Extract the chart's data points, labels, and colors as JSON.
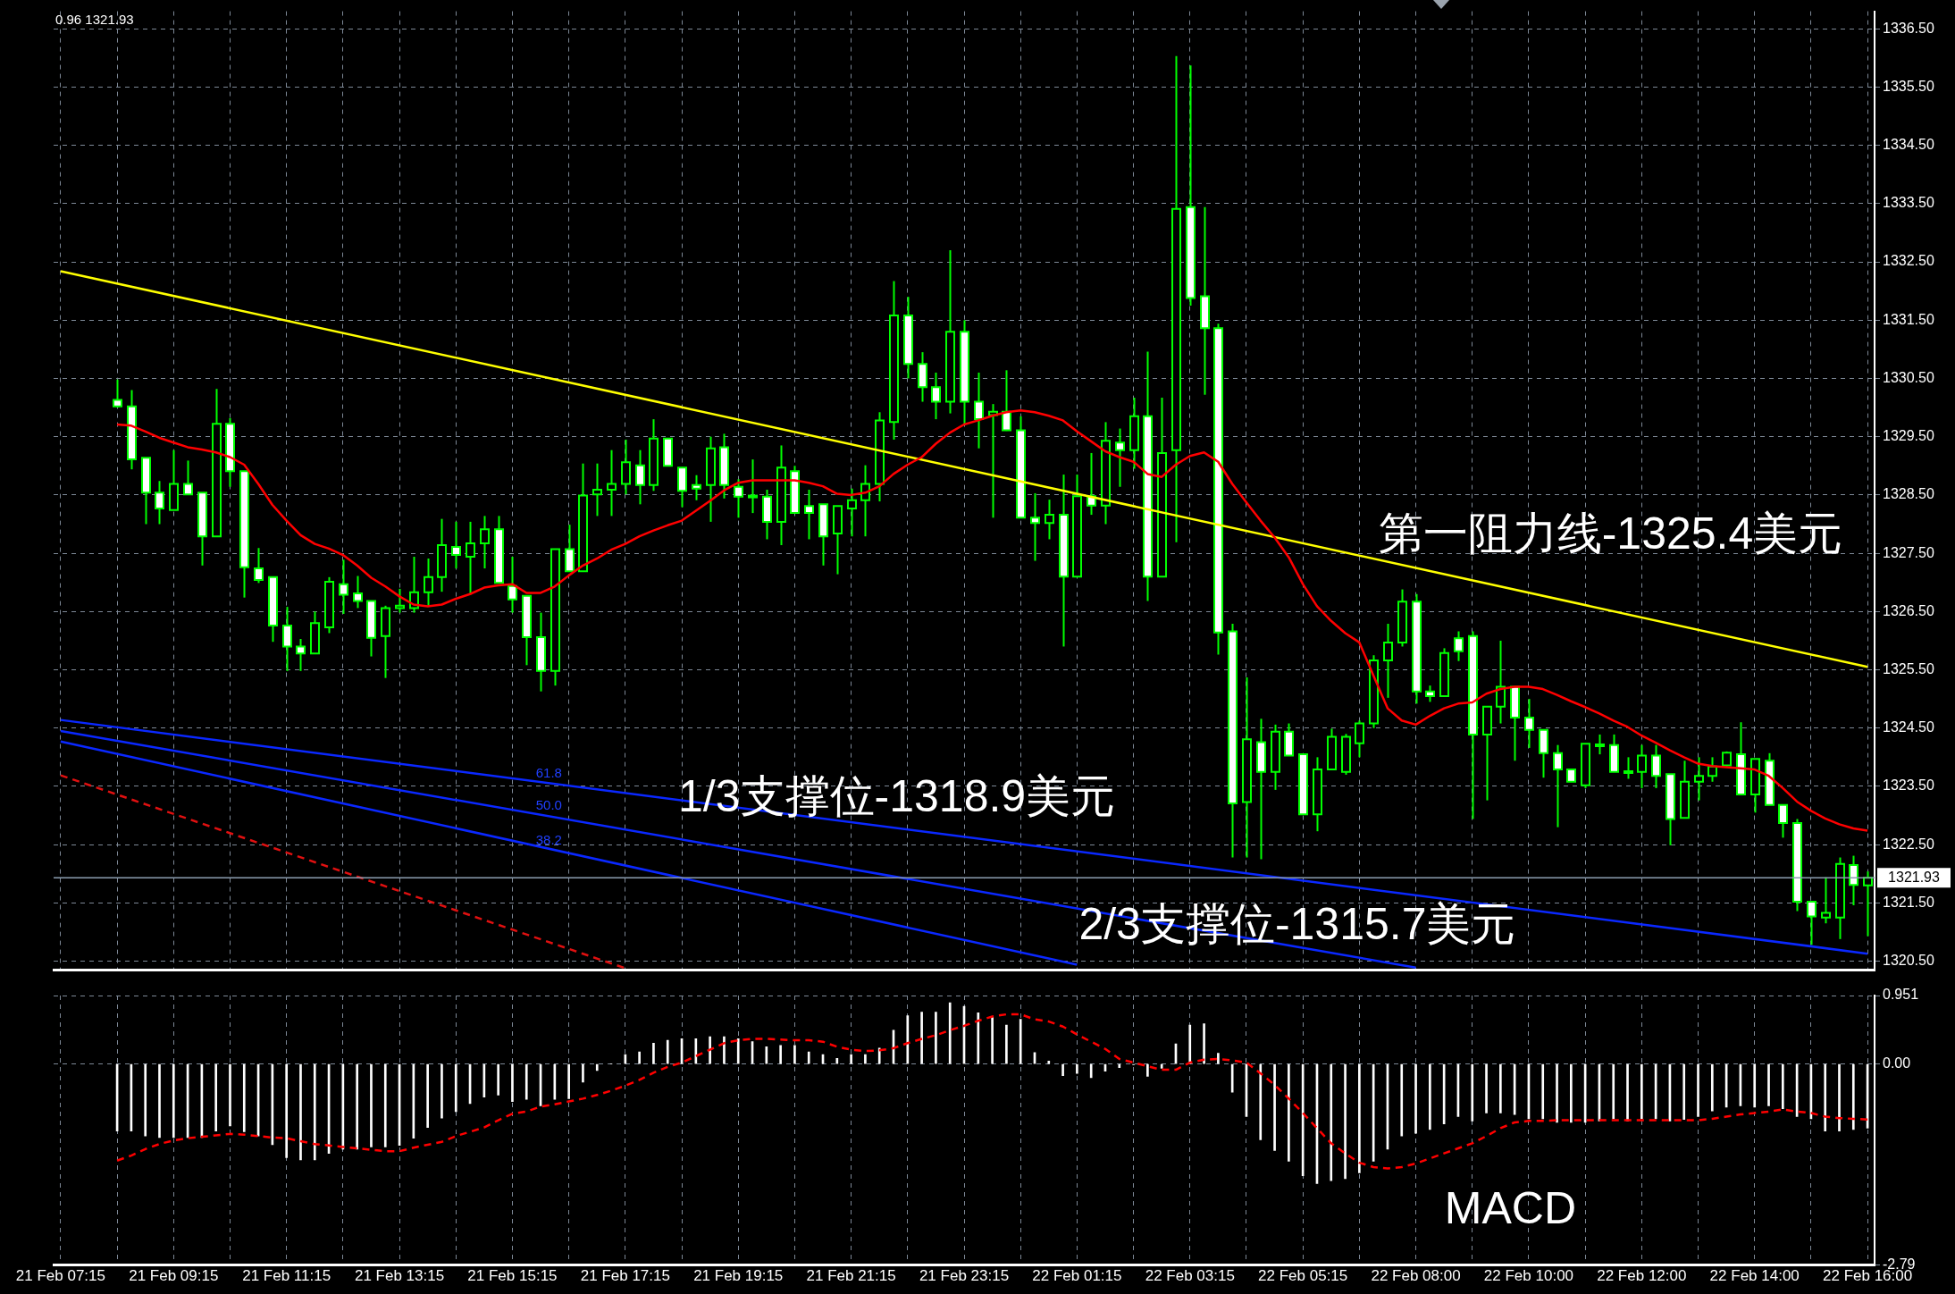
{
  "chart_data": [
    {
      "type": "candlestick",
      "color": "#00ff00",
      "tick_labels": "y",
      "grid": true,
      "categories": [
        "21 Feb 07:15",
        null,
        null,
        null,
        null,
        null,
        null,
        null,
        "21 Feb 09:15",
        null,
        null,
        null,
        null,
        null,
        null,
        null,
        "21 Feb 11:15",
        null,
        null,
        null,
        null,
        null,
        null,
        null,
        "21 Feb 13:15",
        null,
        null,
        null,
        null,
        null,
        null,
        null,
        "21 Feb 15:15",
        null,
        null,
        null,
        null,
        null,
        null,
        null,
        "21 Feb 17:15",
        null,
        null,
        null,
        null,
        null,
        null,
        null,
        "21 Feb 19:15",
        null,
        null,
        null,
        null,
        null,
        null,
        null,
        "21 Feb 21:15",
        null,
        null,
        null,
        null,
        null,
        null,
        null,
        "21 Feb 23:15",
        null,
        null,
        null,
        null,
        null,
        null,
        null,
        "22 Feb 01:15",
        null,
        null,
        null,
        null,
        null,
        null,
        null,
        "22 Feb 03:15",
        null,
        null,
        null,
        null,
        null,
        null,
        null,
        "22 Feb 05:15",
        null,
        null,
        null,
        null,
        null,
        null,
        null,
        "22 Feb 08:00",
        null,
        null,
        null,
        null,
        null,
        null,
        null,
        "22 Feb 10:00",
        null,
        null,
        null,
        null,
        null,
        null,
        null,
        "22 Feb 12:00",
        null,
        null,
        null,
        null,
        null,
        null,
        null,
        "22 Feb 14:00",
        null,
        null,
        null,
        null,
        null,
        null,
        null,
        "22 Feb 16:00"
      ],
      "ohlc": [
        null,
        null,
        null,
        null,
        [
          1330.13,
          1330.48,
          1330.0,
          1330.02
        ],
        [
          1330.02,
          1330.3,
          1328.94,
          1329.11
        ],
        [
          1329.14,
          1329.14,
          1328.0,
          1328.54
        ],
        [
          1328.54,
          1328.74,
          1328.0,
          1328.27
        ],
        [
          1328.24,
          1329.27,
          1328.24,
          1328.69
        ],
        [
          1328.69,
          1329.09,
          1328.51,
          1328.51
        ],
        [
          1328.54,
          1328.54,
          1327.29,
          1327.79
        ],
        [
          1327.79,
          1330.32,
          1327.79,
          1329.72
        ],
        [
          1329.72,
          1329.82,
          1328.64,
          1328.91
        ],
        [
          1328.91,
          1328.91,
          1326.74,
          1327.26
        ],
        [
          1327.24,
          1327.59,
          1326.99,
          1327.04
        ],
        [
          1327.09,
          1327.09,
          1325.98,
          1326.26
        ],
        [
          1326.26,
          1326.58,
          1325.48,
          1325.9
        ],
        [
          1325.9,
          1326.03,
          1325.48,
          1325.78
        ],
        [
          1325.78,
          1326.5,
          1325.78,
          1326.3
        ],
        [
          1326.23,
          1327.09,
          1326.13,
          1327.01
        ],
        [
          1326.97,
          1327.39,
          1326.46,
          1326.79
        ],
        [
          1326.81,
          1327.11,
          1326.56,
          1326.68
        ],
        [
          1326.68,
          1326.68,
          1325.73,
          1326.05
        ],
        [
          1326.08,
          1326.6,
          1325.36,
          1326.56
        ],
        [
          1326.56,
          1326.89,
          1326.48,
          1326.6
        ],
        [
          1326.56,
          1327.44,
          1326.48,
          1326.83
        ],
        [
          1326.83,
          1327.41,
          1326.58,
          1327.09
        ],
        [
          1327.09,
          1328.09,
          1326.84,
          1327.64
        ],
        [
          1327.61,
          1328.04,
          1327.24,
          1327.47
        ],
        [
          1327.44,
          1328.04,
          1326.79,
          1327.67
        ],
        [
          1327.67,
          1328.14,
          1327.24,
          1327.91
        ],
        [
          1327.91,
          1328.14,
          1326.99,
          1326.99
        ],
        [
          1326.94,
          1327.44,
          1326.48,
          1326.71
        ],
        [
          1326.77,
          1326.77,
          1325.58,
          1326.06
        ],
        [
          1326.06,
          1326.48,
          1325.13,
          1325.48
        ],
        [
          1325.48,
          1327.57,
          1325.23,
          1327.57
        ],
        [
          1327.57,
          1327.99,
          1327.19,
          1327.19
        ],
        [
          1327.19,
          1329.04,
          1327.19,
          1328.49
        ],
        [
          1328.51,
          1329.04,
          1328.14,
          1328.59
        ],
        [
          1328.59,
          1329.27,
          1328.14,
          1328.69
        ],
        [
          1328.69,
          1329.45,
          1328.51,
          1329.06
        ],
        [
          1329.01,
          1329.27,
          1328.34,
          1328.67
        ],
        [
          1328.67,
          1329.8,
          1328.57,
          1329.47
        ],
        [
          1329.47,
          1329.47,
          1329.0,
          1329.0
        ],
        [
          1328.97,
          1328.97,
          1328.29,
          1328.57
        ],
        [
          1328.67,
          1328.84,
          1328.41,
          1328.61
        ],
        [
          1328.67,
          1329.5,
          1328.04,
          1329.3
        ],
        [
          1329.32,
          1329.55,
          1328.44,
          1328.67
        ],
        [
          1328.64,
          1328.77,
          1328.11,
          1328.47
        ],
        [
          1328.47,
          1329.11,
          1328.19,
          1328.49
        ],
        [
          1328.47,
          1328.59,
          1327.74,
          1328.04
        ],
        [
          1328.04,
          1329.35,
          1327.64,
          1328.97
        ],
        [
          1328.91,
          1329.0,
          1328.19,
          1328.19
        ],
        [
          1328.31,
          1328.59,
          1327.74,
          1328.19
        ],
        [
          1328.34,
          1328.34,
          1327.29,
          1327.79
        ],
        [
          1327.84,
          1328.31,
          1327.14,
          1328.31
        ],
        [
          1328.27,
          1328.61,
          1327.79,
          1328.41
        ],
        [
          1328.41,
          1329.01,
          1327.79,
          1328.69
        ],
        [
          1328.69,
          1329.92,
          1328.39,
          1329.78
        ],
        [
          1329.75,
          1332.17,
          1329.45,
          1331.58
        ],
        [
          1331.58,
          1331.9,
          1330.5,
          1330.75
        ],
        [
          1330.75,
          1330.95,
          1330.1,
          1330.35
        ],
        [
          1330.35,
          1330.6,
          1329.8,
          1330.1
        ],
        [
          1330.1,
          1332.7,
          1329.9,
          1331.3
        ],
        [
          1331.3,
          1331.5,
          1329.7,
          1330.1
        ],
        [
          1330.1,
          1330.6,
          1329.3,
          1329.8
        ],
        [
          1329.87,
          1330.06,
          1328.11,
          1329.93
        ],
        [
          1329.93,
          1330.64,
          1329.6,
          1329.61
        ],
        [
          1329.61,
          1329.85,
          1328.1,
          1328.11
        ],
        [
          1328.11,
          1328.53,
          1327.37,
          1328.02
        ],
        [
          1328.02,
          1328.42,
          1327.74,
          1328.16
        ],
        [
          1328.16,
          1328.85,
          1325.9,
          1327.1
        ],
        [
          1327.1,
          1328.85,
          1327.1,
          1328.48
        ],
        [
          1328.48,
          1329.22,
          1328.16,
          1328.32
        ],
        [
          1328.32,
          1329.75,
          1328.0,
          1329.43
        ],
        [
          1329.4,
          1329.64,
          1328.64,
          1329.27
        ],
        [
          1329.27,
          1330.17,
          1328.95,
          1329.85
        ],
        [
          1329.85,
          1330.96,
          1326.68,
          1327.1
        ],
        [
          1327.1,
          1330.17,
          1327.1,
          1329.22
        ],
        [
          1329.27,
          1336.03,
          1327.69,
          1333.41
        ],
        [
          1333.44,
          1335.87,
          1331.75,
          1331.88
        ],
        [
          1331.91,
          1333.44,
          1330.22,
          1331.36
        ],
        [
          1331.36,
          1331.44,
          1325.76,
          1326.14
        ],
        [
          1326.16,
          1326.29,
          1322.28,
          1323.21
        ],
        [
          1323.23,
          1325.37,
          1322.28,
          1324.31
        ],
        [
          1324.26,
          1324.66,
          1322.25,
          1323.75
        ],
        [
          1323.75,
          1324.56,
          1323.44,
          1324.44
        ],
        [
          1324.44,
          1324.58,
          1324.03,
          1324.03
        ],
        [
          1324.05,
          1324.05,
          1323.02,
          1323.02
        ],
        [
          1323.02,
          1324.0,
          1322.73,
          1323.79
        ],
        [
          1323.79,
          1324.49,
          1323.79,
          1324.35
        ],
        [
          1323.75,
          1324.4,
          1323.7,
          1324.35
        ],
        [
          1324.24,
          1324.63,
          1324.0,
          1324.58
        ],
        [
          1324.58,
          1325.75,
          1324.5,
          1325.66
        ],
        [
          1325.66,
          1326.29,
          1325.02,
          1325.97
        ],
        [
          1325.97,
          1326.88,
          1325.9,
          1326.67
        ],
        [
          1326.67,
          1326.8,
          1324.92,
          1325.13
        ],
        [
          1325.13,
          1325.23,
          1324.95,
          1325.05
        ],
        [
          1325.05,
          1325.87,
          1325.05,
          1325.79
        ],
        [
          1326.04,
          1326.16,
          1325.65,
          1325.82
        ],
        [
          1326.08,
          1326.16,
          1322.94,
          1324.39
        ],
        [
          1324.39,
          1324.87,
          1323.26,
          1324.87
        ],
        [
          1324.87,
          1326.0,
          1324.58,
          1325.21
        ],
        [
          1325.21,
          1325.21,
          1323.94,
          1324.68
        ],
        [
          1324.68,
          1325.0,
          1324.16,
          1324.47
        ],
        [
          1324.47,
          1324.47,
          1323.65,
          1324.07
        ],
        [
          1324.07,
          1324.21,
          1322.8,
          1323.79
        ],
        [
          1323.79,
          1323.79,
          1323.58,
          1323.58
        ],
        [
          1323.52,
          1324.23,
          1323.47,
          1324.23
        ],
        [
          1324.2,
          1324.39,
          1324.05,
          1324.22
        ],
        [
          1324.21,
          1324.39,
          1323.75,
          1323.75
        ],
        [
          1323.73,
          1324.0,
          1323.63,
          1323.76
        ],
        [
          1323.75,
          1324.21,
          1323.47,
          1324.03
        ],
        [
          1324.03,
          1324.21,
          1323.47,
          1323.68
        ],
        [
          1323.71,
          1323.71,
          1322.49,
          1322.94
        ],
        [
          1322.96,
          1323.94,
          1322.96,
          1323.58
        ],
        [
          1323.58,
          1324.0,
          1323.26,
          1323.68
        ],
        [
          1323.68,
          1324.0,
          1323.58,
          1323.84
        ],
        [
          1323.86,
          1324.1,
          1323.84,
          1324.08
        ],
        [
          1324.05,
          1324.6,
          1323.36,
          1323.36
        ],
        [
          1323.36,
          1323.97,
          1323.05,
          1323.97
        ],
        [
          1323.94,
          1324.07,
          1323.18,
          1323.18
        ],
        [
          1323.18,
          1323.18,
          1322.62,
          1322.87
        ],
        [
          1322.87,
          1322.94,
          1321.36,
          1321.52
        ],
        [
          1321.52,
          1321.52,
          1320.78,
          1321.27
        ],
        [
          1321.25,
          1321.94,
          1321.15,
          1321.33
        ],
        [
          1321.25,
          1322.28,
          1320.88,
          1322.17
        ],
        [
          1322.15,
          1322.31,
          1321.46,
          1321.81
        ],
        [
          1321.8,
          1322.04,
          1320.93,
          1321.93
        ]
      ],
      "series": [
        {
          "type": "line",
          "color": "#ff0000",
          "values": [
            null,
            null,
            null,
            null,
            1329.71,
            1329.69,
            1329.59,
            1329.48,
            1329.4,
            1329.32,
            1329.28,
            1329.23,
            1329.15,
            1329.02,
            1328.69,
            1328.33,
            1328.06,
            1327.81,
            1327.66,
            1327.58,
            1327.47,
            1327.29,
            1327.08,
            1326.93,
            1326.76,
            1326.62,
            1326.59,
            1326.62,
            1326.72,
            1326.8,
            1326.91,
            1326.95,
            1326.97,
            1326.82,
            1326.82,
            1326.93,
            1327.12,
            1327.29,
            1327.41,
            1327.56,
            1327.66,
            1327.79,
            1327.89,
            1327.98,
            1328.06,
            1328.23,
            1328.4,
            1328.58,
            1328.71,
            1328.75,
            1328.75,
            1328.75,
            1328.75,
            1328.71,
            1328.65,
            1328.52,
            1328.5,
            1328.54,
            1328.65,
            1328.86,
            1329.02,
            1329.15,
            1329.38,
            1329.57,
            1329.71,
            1329.78,
            1329.86,
            1329.92,
            1329.95,
            1329.92,
            1329.86,
            1329.78,
            1329.59,
            1329.42,
            1329.25,
            1329.15,
            1329.07,
            1328.86,
            1328.81,
            1329.02,
            1329.17,
            1329.23,
            1329.07,
            1328.69,
            1328.37,
            1328.06,
            1327.77,
            1327.43,
            1326.97,
            1326.59,
            1326.34,
            1326.13,
            1325.97,
            1325.4,
            1324.84,
            1324.63,
            1324.56,
            1324.71,
            1324.84,
            1324.92,
            1324.94,
            1325.09,
            1325.17,
            1325.21,
            1325.21,
            1325.17,
            1325.07,
            1324.96,
            1324.86,
            1324.75,
            1324.63,
            1324.52,
            1324.37,
            1324.25,
            1324.12,
            1324.0,
            1323.89,
            1323.85,
            1323.83,
            1323.81,
            1323.79,
            1323.68,
            1323.47,
            1323.24,
            1323.08,
            1322.95,
            1322.85,
            1322.78,
            1322.74
          ]
        },
        {
          "type": "line",
          "color": "#ffff00",
          "x": [
            "21 Feb 07:15",
            "22 Feb 16:00"
          ],
          "values": [
            1332.34,
            1325.55
          ]
        },
        {
          "type": "line",
          "color": "#0a28ff",
          "x": [
            "21 Feb 07:15",
            "22 Feb 16:00"
          ],
          "values": [
            1324.64,
            1320.63
          ]
        },
        {
          "type": "line",
          "color": "#0a28ff",
          "x": [
            "21 Feb 07:15",
            "22 Feb 08:00"
          ],
          "values": [
            1324.45,
            1320.39
          ]
        },
        {
          "type": "line",
          "color": "#0a28ff",
          "x": [
            "21 Feb 07:15",
            "22 Feb 01:15"
          ],
          "values": [
            1324.27,
            1320.44
          ]
        },
        {
          "type": "line",
          "color": "#e01010",
          "line_style": "dashed",
          "x": [
            "21 Feb 07:15",
            "21 Feb 17:15"
          ],
          "values": [
            1323.69,
            1320.38
          ]
        }
      ],
      "ylim": [
        1320.35,
        1336.8
      ],
      "yticks": [
        {
          "value": 1320.5,
          "label": "1320.50"
        },
        {
          "value": 1321.5,
          "label": "1321.50"
        },
        {
          "value": 1322.5,
          "label": "1322.50"
        },
        {
          "value": 1323.5,
          "label": "1323.50"
        },
        {
          "value": 1324.5,
          "label": "1324.50"
        },
        {
          "value": 1325.5,
          "label": "1325.50"
        },
        {
          "value": 1326.5,
          "label": "1326.50"
        },
        {
          "value": 1327.5,
          "label": "1327.50"
        },
        {
          "value": 1328.5,
          "label": "1328.50"
        },
        {
          "value": 1329.5,
          "label": "1329.50"
        },
        {
          "value": 1330.5,
          "label": "1330.50"
        },
        {
          "value": 1331.5,
          "label": "1331.50"
        },
        {
          "value": 1332.5,
          "label": "1332.50"
        },
        {
          "value": 1333.5,
          "label": "1333.50"
        },
        {
          "value": 1334.5,
          "label": "1334.50"
        },
        {
          "value": 1335.5,
          "label": "1335.50"
        },
        {
          "value": 1336.5,
          "label": "1336.50"
        }
      ],
      "ref_lines": [
        {
          "axis": "y",
          "value": 1321.93,
          "label": "1321.93",
          "color": "#8c9db0"
        }
      ],
      "annotations": [
        "0.96 1321.93",
        "第一阻力线-1325.4美元",
        "1/3支撑位-1318.9美元",
        "2/3支撑位-1315.7美元",
        "61.8",
        "50.0",
        "38.2"
      ]
    },
    {
      "type": "bar",
      "grid": true,
      "categories": [
        "21 Feb 07:15",
        null,
        null,
        null,
        null,
        null,
        null,
        null,
        "21 Feb 09:15",
        null,
        null,
        null,
        null,
        null,
        null,
        null,
        "21 Feb 11:15",
        null,
        null,
        null,
        null,
        null,
        null,
        null,
        "21 Feb 13:15",
        null,
        null,
        null,
        null,
        null,
        null,
        null,
        "21 Feb 15:15",
        null,
        null,
        null,
        null,
        null,
        null,
        null,
        "21 Feb 17:15",
        null,
        null,
        null,
        null,
        null,
        null,
        null,
        "21 Feb 19:15",
        null,
        null,
        null,
        null,
        null,
        null,
        null,
        "21 Feb 21:15",
        null,
        null,
        null,
        null,
        null,
        null,
        null,
        "21 Feb 23:15",
        null,
        null,
        null,
        null,
        null,
        null,
        null,
        "22 Feb 01:15",
        null,
        null,
        null,
        null,
        null,
        null,
        null,
        "22 Feb 03:15",
        null,
        null,
        null,
        null,
        null,
        null,
        null,
        "22 Feb 05:15",
        null,
        null,
        null,
        null,
        null,
        null,
        null,
        "22 Feb 08:00",
        null,
        null,
        null,
        null,
        null,
        null,
        null,
        "22 Feb 10:00",
        null,
        null,
        null,
        null,
        null,
        null,
        null,
        "22 Feb 12:00",
        null,
        null,
        null,
        null,
        null,
        null,
        null,
        "22 Feb 14:00",
        null,
        null,
        null,
        null,
        null,
        null,
        null,
        "22 Feb 16:00"
      ],
      "series": [
        {
          "type": "bar",
          "color": "#ffffff",
          "values": [
            null,
            null,
            null,
            null,
            -0.93,
            -0.93,
            -1.0,
            -1.02,
            -1.02,
            -1.02,
            -1.02,
            -0.93,
            -0.86,
            -0.94,
            -1.0,
            -1.12,
            -1.3,
            -1.33,
            -1.33,
            -1.24,
            -1.18,
            -1.18,
            -1.15,
            -1.15,
            -1.13,
            -1.03,
            -0.88,
            -0.75,
            -0.66,
            -0.55,
            -0.46,
            -0.43,
            -0.52,
            -0.49,
            -0.58,
            -0.49,
            -0.48,
            -0.25,
            -0.09,
            0.0,
            0.13,
            0.17,
            0.29,
            0.33,
            0.35,
            0.35,
            0.38,
            0.38,
            0.35,
            0.31,
            0.24,
            0.26,
            0.26,
            0.17,
            0.13,
            0.08,
            0.13,
            0.13,
            0.22,
            0.47,
            0.67,
            0.72,
            0.72,
            0.85,
            0.8,
            0.71,
            0.66,
            0.54,
            0.62,
            0.16,
            0.04,
            -0.16,
            -0.13,
            -0.19,
            -0.1,
            -0.05,
            -0.01,
            -0.17,
            -0.06,
            0.28,
            0.54,
            0.56,
            0.15,
            -0.39,
            -0.73,
            -1.05,
            -1.2,
            -1.35,
            -1.55,
            -1.66,
            -1.62,
            -1.59,
            -1.51,
            -1.35,
            -1.18,
            -1.0,
            -0.96,
            -0.91,
            -0.83,
            -0.73,
            -0.79,
            -0.68,
            -0.68,
            -0.7,
            -0.76,
            -0.76,
            -0.81,
            -0.81,
            -0.81,
            -0.79,
            -0.76,
            -0.79,
            -0.76,
            -0.76,
            -0.79,
            -0.77,
            -0.73,
            -0.65,
            -0.6,
            -0.58,
            -0.6,
            -0.58,
            -0.62,
            -0.73,
            -0.76,
            -0.93,
            -0.93,
            -0.91,
            -0.89
          ]
        },
        {
          "type": "line",
          "color": "#ff0000",
          "line_style": "dashed",
          "values": [
            null,
            null,
            null,
            null,
            -1.34,
            -1.27,
            -1.18,
            -1.11,
            -1.06,
            -1.03,
            -1.01,
            -0.99,
            -0.97,
            -0.98,
            -1.0,
            -1.02,
            -1.03,
            -1.07,
            -1.11,
            -1.13,
            -1.15,
            -1.17,
            -1.19,
            -1.21,
            -1.21,
            -1.16,
            -1.12,
            -1.08,
            -1.0,
            -0.94,
            -0.88,
            -0.78,
            -0.69,
            -0.66,
            -0.59,
            -0.56,
            -0.52,
            -0.48,
            -0.43,
            -0.37,
            -0.3,
            -0.22,
            -0.12,
            -0.04,
            0.02,
            0.11,
            0.2,
            0.29,
            0.33,
            0.35,
            0.35,
            0.34,
            0.33,
            0.33,
            0.31,
            0.24,
            0.2,
            0.18,
            0.19,
            0.22,
            0.29,
            0.35,
            0.4,
            0.47,
            0.53,
            0.6,
            0.66,
            0.69,
            0.69,
            0.62,
            0.59,
            0.52,
            0.41,
            0.31,
            0.21,
            0.07,
            0.02,
            -0.03,
            -0.08,
            -0.08,
            0.02,
            0.06,
            0.07,
            0.05,
            0.02,
            -0.13,
            -0.29,
            -0.48,
            -0.68,
            -0.89,
            -1.1,
            -1.24,
            -1.37,
            -1.43,
            -1.45,
            -1.43,
            -1.38,
            -1.31,
            -1.24,
            -1.17,
            -1.1,
            -1.0,
            -0.89,
            -0.81,
            -0.79,
            -0.79,
            -0.78,
            -0.78,
            -0.78,
            -0.78,
            -0.78,
            -0.78,
            -0.78,
            -0.78,
            -0.78,
            -0.78,
            -0.78,
            -0.76,
            -0.73,
            -0.7,
            -0.68,
            -0.66,
            -0.63,
            -0.66,
            -0.68,
            -0.73,
            -0.75,
            -0.76,
            -0.77
          ]
        }
      ],
      "ylim": [
        -2.79,
        0.951
      ],
      "yticks": [
        0.951,
        {
          "value": 0,
          "label": "0.00"
        },
        -2.79
      ],
      "annotations": [
        "MACD"
      ]
    }
  ]
}
